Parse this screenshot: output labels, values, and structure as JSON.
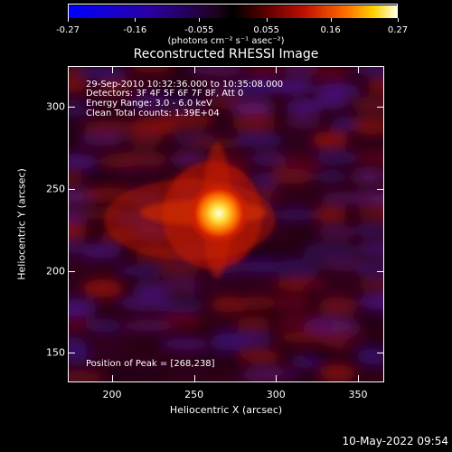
{
  "colorbar": {
    "tick_labels": [
      "-0.27",
      "-0.16",
      "-0.055",
      "0.055",
      "0.16",
      "0.27"
    ],
    "units": "(photons cm⁻² s⁻¹ asec⁻²)",
    "range": [
      -0.27,
      0.27
    ]
  },
  "plot": {
    "title": "Reconstructed RHESSI Image",
    "annotations": [
      "29-Sep-2010 10:32:36.000 to 10:35:08.000",
      "Detectors: 3F 4F 5F 6F 7F 8F, Att 0",
      "Energy Range: 3.0 - 6.0 keV",
      "Clean     Total counts: 1.39E+04"
    ],
    "peak_text": "Position of Peak = [268,238]",
    "x_axis": {
      "label": "Heliocentric X (arcsec)",
      "range": [
        173,
        366
      ],
      "ticks": [
        "200",
        "250",
        "300",
        "350"
      ]
    },
    "y_axis": {
      "label": "Heliocentric Y (arcsec)",
      "range": [
        132,
        325
      ],
      "ticks": [
        "150",
        "200",
        "250",
        "300"
      ]
    }
  },
  "footer": {
    "timestamp": "10-May-2022 09:54"
  }
}
